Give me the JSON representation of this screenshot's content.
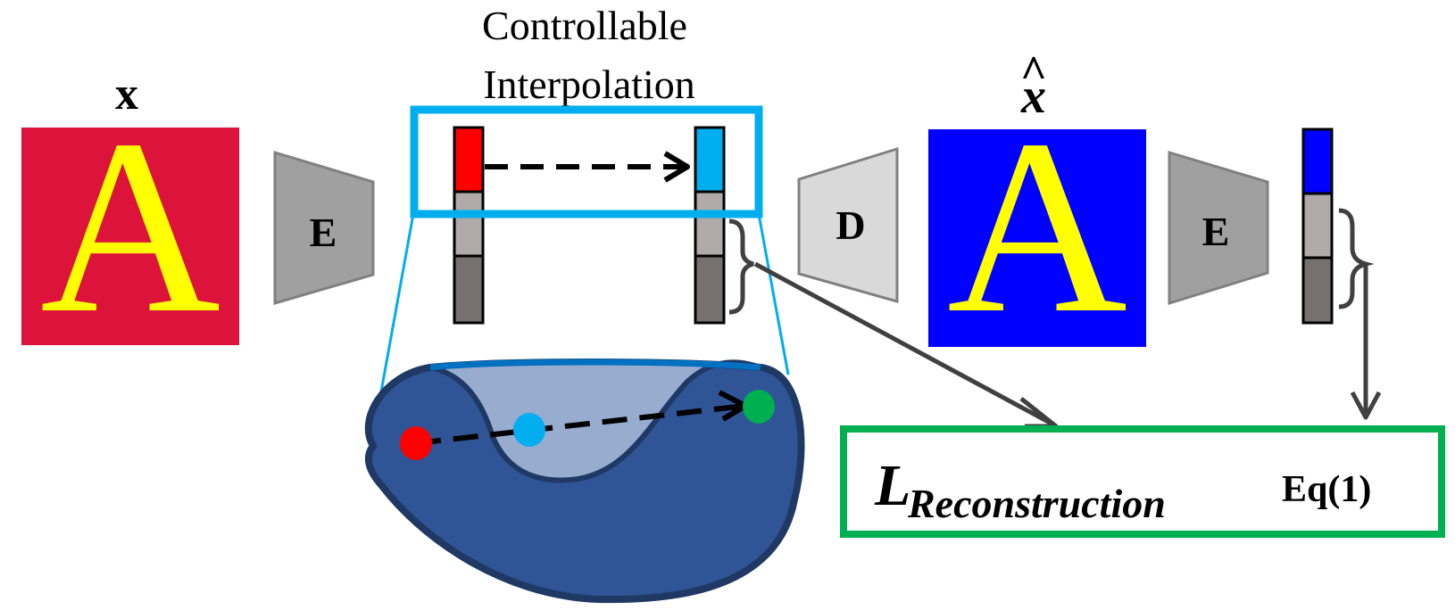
{
  "labels": {
    "input_symbol": "x",
    "output_symbol": "x",
    "output_hat": "^",
    "module_title_line1": "Controllable",
    "module_title_line2": "Interpolation",
    "encoder_1": "E",
    "decoder": "D",
    "encoder_2": "E",
    "loss_main": "L",
    "loss_subscript": "Reconstruction",
    "loss_eq": "Eq(1)"
  },
  "glyphs": {
    "input_letter": "A",
    "output_letter": "A"
  },
  "colors": {
    "input_bg": "#dc143c",
    "output_bg": "#0000ff",
    "glyph": "#ffff00",
    "highlight_box": "#00aeef",
    "loss_box": "#00b050",
    "encoder_fill": "#a0a0a0",
    "decoder_fill": "#d9d9d9",
    "latent_red": "#ff0000",
    "latent_cyan": "#00aeef",
    "latent_blue": "#0000ff",
    "latent_light": "#b0aaaa",
    "latent_dark": "#777070",
    "manifold_outer": "#2f5597",
    "manifold_inner": "#98acd0",
    "manifold_edge": "#1f3864",
    "point_red": "#ff0000",
    "point_cyan": "#00aeef",
    "point_green": "#00b050"
  }
}
